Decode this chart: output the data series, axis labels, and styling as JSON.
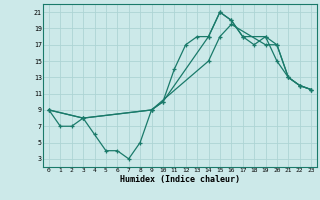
{
  "title": "",
  "xlabel": "Humidex (Indice chaleur)",
  "background_color": "#cce9e9",
  "grid_color": "#add4d4",
  "line_color": "#1a7a6a",
  "xlim": [
    -0.5,
    23.5
  ],
  "ylim": [
    2.0,
    22.0
  ],
  "xticks": [
    0,
    1,
    2,
    3,
    4,
    5,
    6,
    7,
    8,
    9,
    10,
    11,
    12,
    13,
    14,
    15,
    16,
    17,
    18,
    19,
    20,
    21,
    22,
    23
  ],
  "yticks": [
    3,
    5,
    7,
    9,
    11,
    13,
    15,
    17,
    19,
    21
  ],
  "series1_x": [
    0,
    1,
    2,
    3,
    4,
    5,
    6,
    7,
    8,
    9,
    10,
    11,
    12,
    13,
    14,
    15,
    16,
    17,
    18,
    19,
    20,
    21,
    22,
    23
  ],
  "series1_y": [
    9,
    7,
    7,
    8,
    6,
    4,
    4,
    3,
    5,
    9,
    10,
    14,
    17,
    18,
    18,
    21,
    20,
    18,
    17,
    18,
    15,
    13,
    12,
    11.5
  ],
  "series2_x": [
    0,
    3,
    9,
    10,
    14,
    15,
    16,
    17,
    19,
    20,
    21,
    22,
    23
  ],
  "series2_y": [
    9,
    8,
    9,
    10,
    18,
    21,
    20,
    18,
    18,
    17,
    13,
    12,
    11.5
  ],
  "series3_x": [
    0,
    3,
    9,
    14,
    15,
    16,
    19,
    20,
    21,
    22,
    23
  ],
  "series3_y": [
    9,
    8,
    9,
    15,
    18,
    19.5,
    17,
    17,
    13,
    12,
    11.5
  ]
}
